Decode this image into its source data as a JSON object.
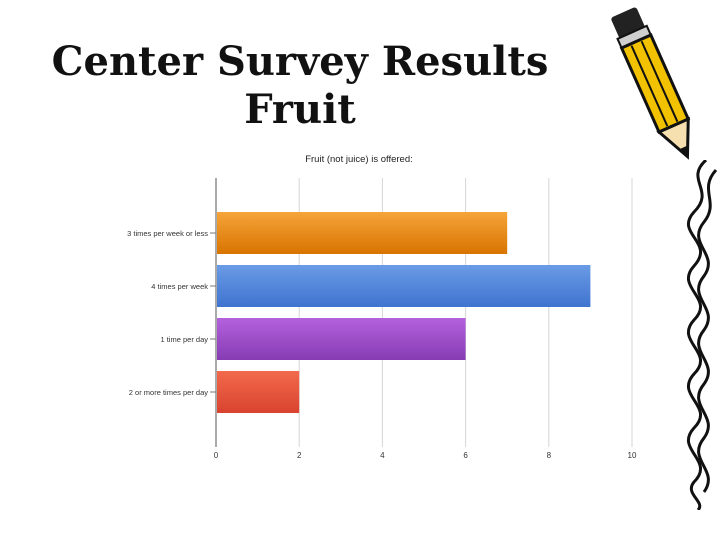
{
  "slide": {
    "title_line1": "Center Survey Results",
    "title_line2": "Fruit"
  },
  "chart_data": {
    "type": "bar",
    "orientation": "horizontal",
    "title": "Fruit (not juice) is offered:",
    "categories": [
      "3 times per week or less",
      "4 times per week",
      "1 time per day",
      "2 or more times per day"
    ],
    "values": [
      7,
      9,
      6,
      2
    ],
    "xlim": [
      0,
      10
    ],
    "xticks": [
      "0",
      "2",
      "4",
      "6",
      "8",
      "10"
    ],
    "colors": [
      "#e98a10",
      "#4f86db",
      "#9b4ec6",
      "#e95b44"
    ],
    "grid": "vertical",
    "legend": "none"
  },
  "decor": {
    "pencil_icon": "pencil-icon",
    "squiggle": "squiggle-decoration"
  }
}
